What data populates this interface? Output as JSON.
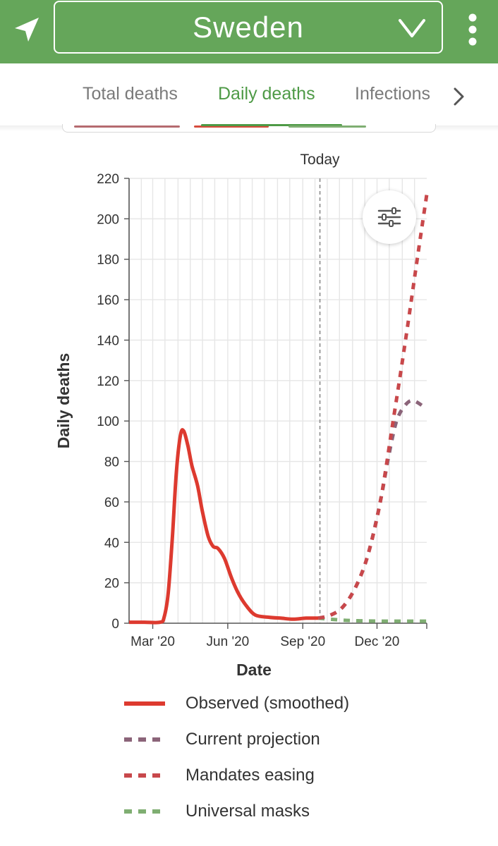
{
  "header": {
    "country": "Sweden",
    "colors": {
      "bar": "#65a65a",
      "foreground": "#ffffff"
    },
    "icons": {
      "location": "location-arrow-icon",
      "dropdown": "chevron-down-icon",
      "menu": "more-vertical-icon"
    }
  },
  "tabs": {
    "items": [
      {
        "label": "Total deaths",
        "active": false
      },
      {
        "label": "Daily deaths",
        "active": true
      },
      {
        "label": "Infections",
        "active": false
      }
    ],
    "next_icon": "chevron-right-icon"
  },
  "chart_data": {
    "type": "line",
    "title": "",
    "xlabel": "Date",
    "ylabel": "Daily deaths",
    "ylim": [
      0,
      220
    ],
    "yticks": [
      0,
      20,
      40,
      60,
      80,
      100,
      120,
      140,
      160,
      180,
      200,
      220
    ],
    "xlim": [
      "2020-02-01",
      "2021-01-31"
    ],
    "xticks": [
      {
        "label": "Mar '20",
        "date": "2020-03-01"
      },
      {
        "label": "Jun '20",
        "date": "2020-06-01"
      },
      {
        "label": "Sep '20",
        "date": "2020-09-01"
      },
      {
        "label": "Dec '20",
        "date": "2020-12-01"
      }
    ],
    "grid": true,
    "today": {
      "label": "Today",
      "date": "2020-09-22"
    },
    "series": [
      {
        "name": "Observed (smoothed)",
        "color": "#dd3a2f",
        "style": "solid",
        "points": [
          [
            "2020-02-01",
            0.5
          ],
          [
            "2020-02-20",
            0.5
          ],
          [
            "2020-03-10",
            0.5
          ],
          [
            "2020-03-15",
            3
          ],
          [
            "2020-03-20",
            15
          ],
          [
            "2020-03-25",
            42
          ],
          [
            "2020-03-30",
            75
          ],
          [
            "2020-04-04",
            93
          ],
          [
            "2020-04-08",
            95
          ],
          [
            "2020-04-13",
            88
          ],
          [
            "2020-04-18",
            78
          ],
          [
            "2020-04-25",
            68
          ],
          [
            "2020-05-01",
            55
          ],
          [
            "2020-05-08",
            43
          ],
          [
            "2020-05-14",
            38
          ],
          [
            "2020-05-20",
            37
          ],
          [
            "2020-05-28",
            32
          ],
          [
            "2020-06-06",
            22
          ],
          [
            "2020-06-15",
            14
          ],
          [
            "2020-06-25",
            8
          ],
          [
            "2020-07-05",
            4
          ],
          [
            "2020-07-20",
            3
          ],
          [
            "2020-08-05",
            2.5
          ],
          [
            "2020-08-20",
            2
          ],
          [
            "2020-09-05",
            2.5
          ],
          [
            "2020-09-20",
            2.5
          ]
        ]
      },
      {
        "name": "Current projection",
        "color": "#8b6479",
        "style": "dashed",
        "points": [
          [
            "2020-09-20",
            2.5
          ],
          [
            "2020-10-05",
            4
          ],
          [
            "2020-10-20",
            8
          ],
          [
            "2020-11-05",
            18
          ],
          [
            "2020-11-20",
            34
          ],
          [
            "2020-12-05",
            60
          ],
          [
            "2020-12-15",
            82
          ],
          [
            "2020-12-25",
            100
          ],
          [
            "2021-01-05",
            108
          ],
          [
            "2021-01-15",
            110
          ],
          [
            "2021-01-31",
            106
          ]
        ]
      },
      {
        "name": "Mandates easing",
        "color": "#c8484b",
        "style": "dashed",
        "points": [
          [
            "2020-09-20",
            2.5
          ],
          [
            "2020-10-05",
            4
          ],
          [
            "2020-10-20",
            8
          ],
          [
            "2020-11-05",
            18
          ],
          [
            "2020-11-20",
            34
          ],
          [
            "2020-12-05",
            60
          ],
          [
            "2020-12-20",
            98
          ],
          [
            "2021-01-05",
            140
          ],
          [
            "2021-01-20",
            182
          ],
          [
            "2021-01-31",
            212
          ]
        ]
      },
      {
        "name": "Universal masks",
        "color": "#7fae72",
        "style": "dashed",
        "points": [
          [
            "2020-09-20",
            2.5
          ],
          [
            "2020-10-05",
            2
          ],
          [
            "2020-10-20",
            1.5
          ],
          [
            "2020-11-10",
            1.2
          ],
          [
            "2020-12-10",
            1
          ],
          [
            "2021-01-31",
            1
          ]
        ]
      }
    ],
    "legend_position": "bottom"
  },
  "filter_icon": "sliders-icon",
  "legend_items": [
    {
      "label": "Observed (smoothed)",
      "color": "#dd3a2f",
      "style": "solid"
    },
    {
      "label": "Current projection",
      "color": "#8b6479",
      "style": "dashed"
    },
    {
      "label": "Mandates easing",
      "color": "#c8484b",
      "style": "dashed"
    },
    {
      "label": "Universal masks",
      "color": "#7fae72",
      "style": "dashed"
    }
  ]
}
